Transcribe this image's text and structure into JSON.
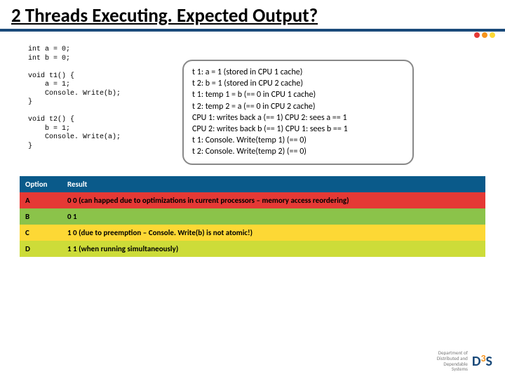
{
  "title": "2 Threads Executing. Expected Output?",
  "dots": [
    "#e53935",
    "#f7941d",
    "#fdd835"
  ],
  "code": "int a = 0;\nint b = 0;\n\nvoid t1() {\n    a = 1;\n    Console. Write(b);\n}\n\nvoid t2() {\n    b = 1;\n    Console. Write(a);\n}",
  "explanation_lines": [
    "t 1: a = 1 (stored in CPU 1 cache)",
    "t 2: b = 1 (stored in CPU 2 cache)",
    "t 1: temp 1 = b (== 0 in CPU 1 cache)",
    "t 2: temp 2 = a (== 0 in CPU 2 cache)",
    "CPU 1: writes back a (== 1) CPU 2: sees a == 1",
    "CPU 2: writes back b (== 1) CPU 1: sees b == 1",
    "t 1: Console. Write(temp 1) (== 0)",
    "t 2: Console. Write(temp 2) (== 0)"
  ],
  "table": {
    "headers": {
      "option": "Option",
      "result": "Result"
    },
    "rows": [
      {
        "class": "row-a",
        "option": "A",
        "result": "0 0 (can happed due to optimizations in current processors – memory access reordering)"
      },
      {
        "class": "row-b",
        "option": "B",
        "result": "0 1"
      },
      {
        "class": "row-c",
        "option": "C",
        "result": "1 0 (due to preemption – Console. Write(b) is not atomic!)"
      },
      {
        "class": "row-d",
        "option": "D",
        "result": "1 1 (when running simultaneously)"
      }
    ]
  },
  "footer": {
    "line1": "Department of",
    "line2": "Distributed and",
    "line3": "Dependable",
    "line4": "Systems",
    "logo_d": "D",
    "logo_3": "3",
    "logo_s": "S"
  }
}
